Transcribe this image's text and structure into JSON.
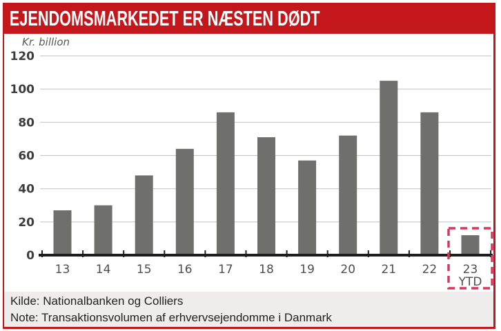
{
  "header": {
    "title": "EJENDOMSMARKEDET ER NÆSTEN DØDT",
    "bg_color": "#c4171c",
    "text_color": "#ffffff"
  },
  "chart_data": {
    "type": "bar",
    "unit_label": "Kr. billion",
    "categories": [
      "13",
      "14",
      "15",
      "16",
      "17",
      "18",
      "19",
      "20",
      "21",
      "22",
      "23"
    ],
    "sub_labels": [
      "",
      "",
      "",
      "",
      "",
      "",
      "",
      "",
      "",
      "",
      "YTD"
    ],
    "values": [
      27,
      30,
      48,
      64,
      86,
      71,
      57,
      72,
      105,
      86,
      12
    ],
    "ylim": [
      0,
      120
    ],
    "ytick_step": 20,
    "grid": true,
    "legend": "none",
    "bar_color": "#6f6f6e",
    "gridline_color": "#c9c9c9",
    "axis_color": "#1d1d1b",
    "ytick_label_color": "#3d3d3d",
    "xtick_label_color": "#4d4d4d",
    "highlight": {
      "category": "23 YTD",
      "style": "dashed-box",
      "color": "#d6395a"
    }
  },
  "footer": {
    "kilde": "Kilde: Nationalbanken og Colliers",
    "note": "Note: Transaktionsvolumen af erhvervsejendomme i Danmark",
    "bg_color": "#efedec"
  },
  "frame": {
    "border_color": "#c4171c"
  }
}
